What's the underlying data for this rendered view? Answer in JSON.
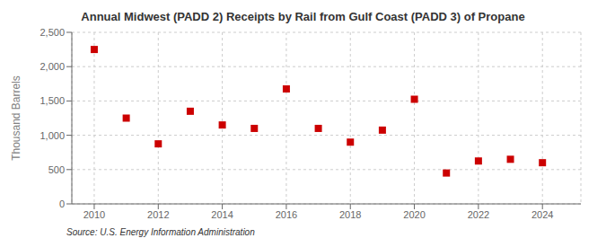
{
  "chart_data": {
    "type": "scatter",
    "title": "Annual Midwest (PADD 2) Receipts by Rail from Gulf Coast (PADD 3) of Propane",
    "ylabel": "Thousand Barrels",
    "annotations": [
      "Source: U.S. Energy Information Administration"
    ],
    "x": [
      2010,
      2011,
      2012,
      2013,
      2014,
      2015,
      2016,
      2017,
      2018,
      2019,
      2020,
      2021,
      2022,
      2023,
      2024
    ],
    "values": [
      2250,
      1250,
      875,
      1350,
      1150,
      1100,
      1675,
      1100,
      900,
      1075,
      1525,
      450,
      625,
      650,
      600
    ],
    "color": "#cc0000",
    "marker": "square",
    "xlim": [
      2009.3,
      2025.2
    ],
    "xticks": [
      2010,
      2012,
      2014,
      2016,
      2018,
      2020,
      2022,
      2024
    ],
    "ylim": [
      0,
      2500
    ],
    "yticks": [
      0,
      500,
      {
        "value": 1000,
        "label": "1,000"
      },
      {
        "value": 1500,
        "label": "1,500"
      },
      {
        "value": 2000,
        "label": "2,000"
      },
      {
        "value": 2500,
        "label": "2,500"
      }
    ],
    "grid": true
  }
}
